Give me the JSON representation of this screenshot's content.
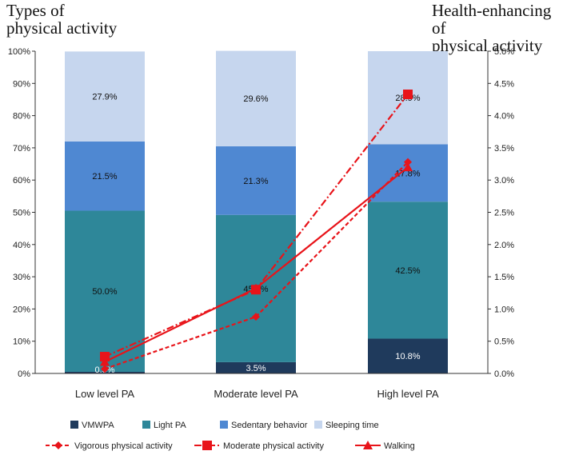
{
  "titles": {
    "left": [
      "Types of",
      "physical activity"
    ],
    "right": [
      "Health-enhancing of",
      "physical activity"
    ]
  },
  "chart_data": {
    "type": "bar",
    "stacked": true,
    "categories": [
      "Low level PA",
      "Moderate level PA",
      "High level PA"
    ],
    "series": [
      {
        "name": "VMWPA",
        "color": "#1f3a5c",
        "values": [
          0.5,
          3.5,
          10.8
        ],
        "labels": [
          "0.5%",
          "3.5%",
          "10.8%"
        ],
        "label_color": "#ffffff"
      },
      {
        "name": "Light PA",
        "color": "#2e8799",
        "values": [
          50.0,
          45.7,
          42.5
        ],
        "labels": [
          "50.0%",
          "45.7%",
          "42.5%"
        ],
        "label_color": "#111111"
      },
      {
        "name": "Sedentary behavior",
        "color": "#4f88d2",
        "values": [
          21.5,
          21.3,
          17.8
        ],
        "labels": [
          "21.5%",
          "21.3%",
          "17.8%"
        ],
        "label_color": "#111111"
      },
      {
        "name": "Sleeping time",
        "color": "#c6d6ee",
        "values": [
          27.9,
          29.6,
          28.9
        ],
        "labels": [
          "27.9%",
          "29.6%",
          "28.9%"
        ],
        "label_color": "#111111"
      }
    ],
    "lines": [
      {
        "name": "Vigorous physical activity",
        "color": "#e8141a",
        "dash": "dashed",
        "marker": "diamond",
        "values": [
          0.07,
          0.88,
          3.28
        ]
      },
      {
        "name": "Moderate physical activity",
        "color": "#e8141a",
        "dash": "dashdot",
        "marker": "square",
        "values": [
          0.26,
          1.3,
          4.33
        ]
      },
      {
        "name": "Walking",
        "color": "#e8141a",
        "dash": "solid",
        "marker": "triangle",
        "values": [
          0.18,
          1.32,
          3.2
        ]
      }
    ],
    "ylim": [
      0,
      100
    ],
    "yticks": [
      "0%",
      "10%",
      "20%",
      "30%",
      "40%",
      "50%",
      "60%",
      "70%",
      "80%",
      "90%",
      "100%"
    ],
    "y2lim": [
      0,
      5
    ],
    "y2ticks": [
      "0.0%",
      "0.5%",
      "1.0%",
      "1.5%",
      "2.0%",
      "2.5%",
      "3.0%",
      "3.5%",
      "4.0%",
      "4.5%",
      "5.0%"
    ],
    "grid": false,
    "legend_placement": "bottom"
  }
}
